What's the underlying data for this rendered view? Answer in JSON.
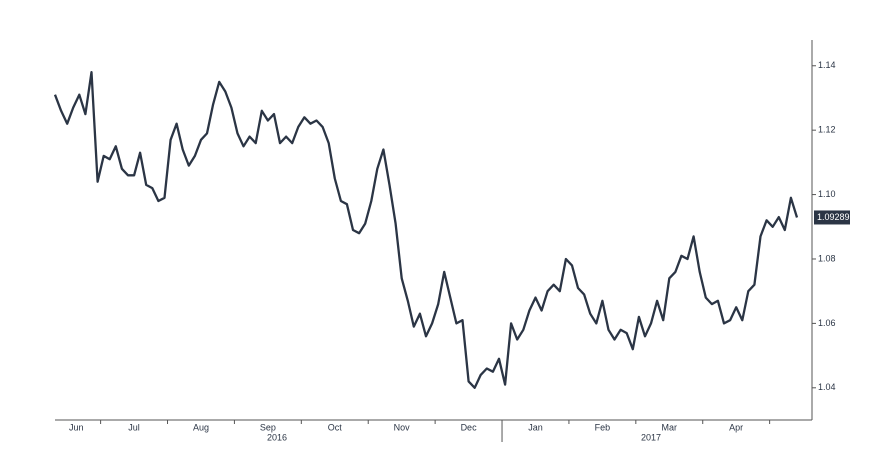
{
  "chart_data": {
    "type": "line",
    "color": "#2b3545",
    "ylim": [
      1.03,
      1.148
    ],
    "yticks": [
      1.04,
      1.06,
      1.08,
      {
        "value": 1.1,
        "label": "1.10"
      },
      1.12,
      1.14
    ],
    "axis_side": "right",
    "last_value_label": true,
    "groups": [
      {
        "year": "2016",
        "months": [
          {
            "name": "Jun",
            "values": [
              1.131,
              1.126,
              1.122,
              1.127,
              1.131,
              1.125,
              1.138,
              1.104
            ]
          },
          {
            "name": "Jul",
            "values": [
              1.112,
              1.111,
              1.115,
              1.108,
              1.106,
              1.106,
              1.113,
              1.103,
              1.102,
              1.098,
              1.099
            ]
          },
          {
            "name": "Aug",
            "values": [
              1.117,
              1.122,
              1.114,
              1.109,
              1.112,
              1.117,
              1.119,
              1.128,
              1.135,
              1.132,
              1.127
            ]
          },
          {
            "name": "Sep",
            "values": [
              1.119,
              1.115,
              1.118,
              1.116,
              1.126,
              1.123,
              1.125,
              1.116,
              1.118,
              1.116,
              1.121
            ]
          },
          {
            "name": "Oct",
            "values": [
              1.124,
              1.122,
              1.123,
              1.121,
              1.116,
              1.105,
              1.098,
              1.097,
              1.089,
              1.088,
              1.091
            ]
          },
          {
            "name": "Nov",
            "values": [
              1.098,
              1.108,
              1.114,
              1.103,
              1.091,
              1.074,
              1.067,
              1.059,
              1.063,
              1.056,
              1.06
            ]
          },
          {
            "name": "Dec",
            "values": [
              1.066,
              1.076,
              1.068,
              1.06,
              1.061,
              1.042,
              1.04,
              1.044,
              1.046,
              1.045,
              1.049
            ]
          }
        ]
      },
      {
        "year": "2017",
        "months": [
          {
            "name": "Jan",
            "values": [
              1.041,
              1.06,
              1.055,
              1.058,
              1.064,
              1.068,
              1.064,
              1.07,
              1.072,
              1.07,
              1.08
            ]
          },
          {
            "name": "Feb",
            "values": [
              1.078,
              1.071,
              1.069,
              1.063,
              1.06,
              1.067,
              1.058,
              1.055,
              1.058,
              1.057,
              1.052
            ]
          },
          {
            "name": "Mar",
            "values": [
              1.062,
              1.056,
              1.06,
              1.067,
              1.061,
              1.074,
              1.076,
              1.081,
              1.08,
              1.087,
              1.076
            ]
          },
          {
            "name": "Apr",
            "values": [
              1.068,
              1.066,
              1.067,
              1.06,
              1.061,
              1.065,
              1.061,
              1.07,
              1.072,
              1.087,
              1.092
            ]
          },
          {
            "name": null,
            "values": [
              1.09,
              1.093,
              1.089,
              1.099,
              1.09289
            ]
          }
        ]
      }
    ]
  }
}
